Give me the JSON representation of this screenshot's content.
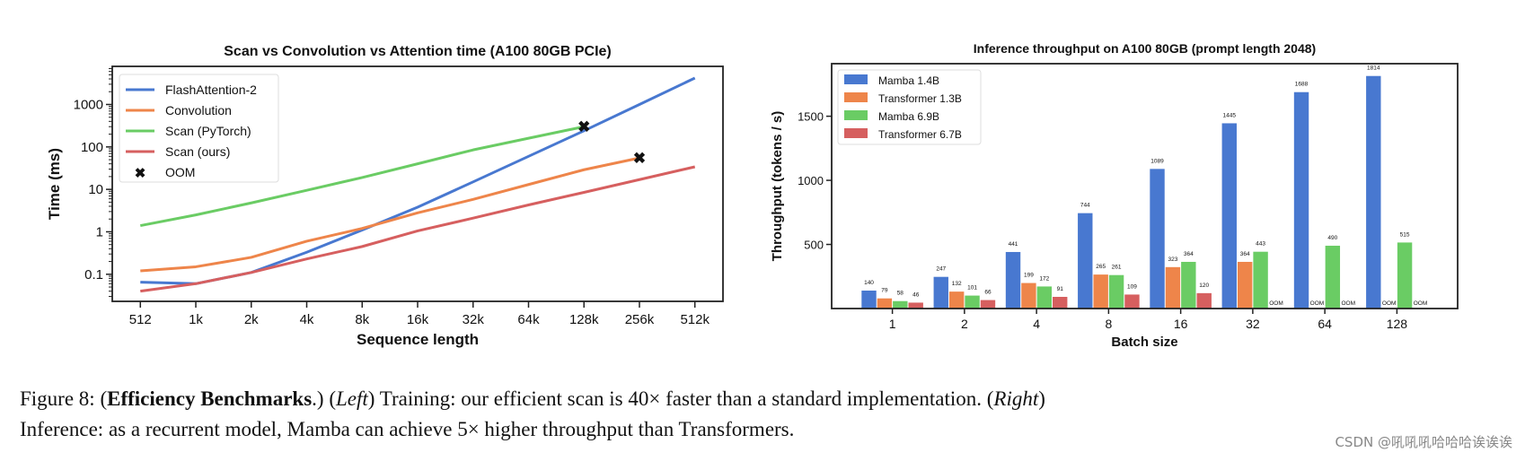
{
  "chart_data": [
    {
      "type": "line",
      "title": "Scan vs Convolution vs Attention time (A100 80GB PCIe)",
      "xlabel": "Sequence length",
      "ylabel": "Time (ms)",
      "yscale": "log",
      "ylim": [
        0.023,
        7900
      ],
      "yticks": [
        "0.1",
        "1",
        "10",
        "100",
        "1000"
      ],
      "yticks_values": [
        0.1,
        1,
        10,
        100,
        1000
      ],
      "categories": [
        "512",
        "1k",
        "2k",
        "4k",
        "8k",
        "16k",
        "32k",
        "64k",
        "128k",
        "256k",
        "512k"
      ],
      "legend": "top-left",
      "grid": false,
      "series": [
        {
          "name": "FlashAttention-2",
          "color": "#4878d0",
          "values": [
            0.065,
            0.06,
            0.11,
            0.33,
            1.1,
            3.8,
            15,
            60,
            240,
            1000,
            4200
          ]
        },
        {
          "name": "Convolution",
          "color": "#ee854a",
          "values": [
            0.12,
            0.15,
            0.25,
            0.6,
            1.2,
            2.8,
            5.8,
            13,
            29,
            55,
            null
          ]
        },
        {
          "name": "Scan (PyTorch)",
          "color": "#6acc64",
          "values": [
            1.4,
            2.5,
            4.8,
            9.5,
            19,
            40,
            85,
            160,
            300,
            null,
            null
          ]
        },
        {
          "name": "Scan (ours)",
          "color": "#d65f5f",
          "values": [
            0.04,
            0.06,
            0.11,
            0.23,
            0.45,
            1.05,
            2.1,
            4.3,
            8.5,
            17,
            34
          ]
        }
      ],
      "oom": {
        "name": "OOM",
        "points": [
          {
            "x": "128k",
            "y": 300
          },
          {
            "x": "256k",
            "y": 55
          }
        ]
      }
    },
    {
      "type": "bar",
      "title": "Inference throughput on A100 80GB (prompt length 2048)",
      "xlabel": "Batch size",
      "ylabel": "Throughput (tokens / s)",
      "ylim": [
        0,
        1910
      ],
      "yticks": [
        500,
        1000,
        1500
      ],
      "categories": [
        "1",
        "2",
        "4",
        "8",
        "16",
        "32",
        "64",
        "128"
      ],
      "legend": "top-left",
      "grid": false,
      "oom_label": "OOM",
      "series": [
        {
          "name": "Mamba 1.4B",
          "color": "#4878d0",
          "values": [
            140,
            247,
            441,
            744,
            1089,
            1445,
            1688,
            1814
          ]
        },
        {
          "name": "Transformer 1.3B",
          "color": "#ee854a",
          "values": [
            79,
            132,
            199,
            265,
            323,
            364,
            null,
            null
          ]
        },
        {
          "name": "Mamba 6.9B",
          "color": "#6acc64",
          "values": [
            58,
            101,
            172,
            261,
            364,
            443,
            490,
            515
          ]
        },
        {
          "name": "Transformer 6.7B",
          "color": "#d65f5f",
          "values": [
            46,
            66,
            91,
            109,
            120,
            null,
            null,
            null
          ]
        }
      ]
    }
  ],
  "caption": {
    "prefix": "Figure 8: (",
    "bold": "Efficiency Benchmarks",
    "mid1": ".) (",
    "left_it": "Left",
    "mid2": ") Training: our efficient scan is 40× faster than a standard implementation. (",
    "right_it": "Right",
    "mid3": ")",
    "line2": "Inference: as a recurrent model, Mamba can achieve 5× higher throughput than Transformers."
  },
  "watermark": "CSDN @吼吼吼哈哈哈诶诶诶"
}
